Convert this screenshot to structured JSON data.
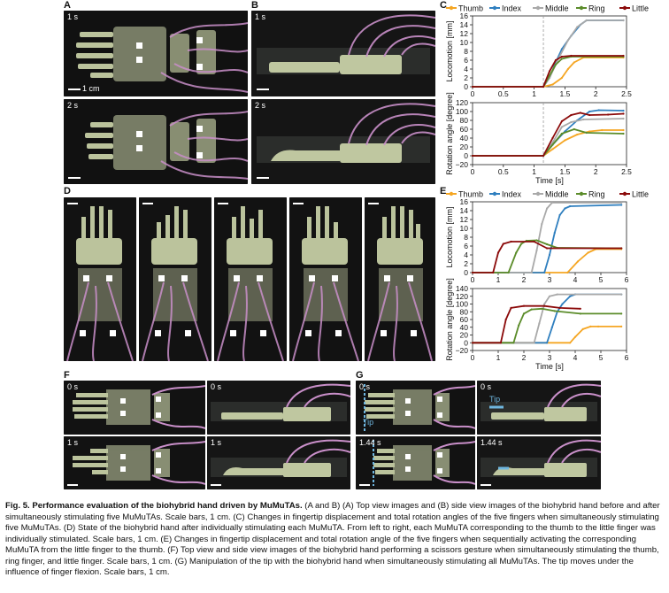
{
  "panel_letters": {
    "a": "A",
    "b": "B",
    "c": "C",
    "d": "D",
    "e": "E",
    "f": "F",
    "g": "G"
  },
  "time_labels": {
    "a_top": "1 s",
    "a_bot": "2 s",
    "b_top": "1 s",
    "b_bot": "2 s",
    "f_tl": "0 s",
    "f_tr": "0 s",
    "f_bl": "1 s",
    "f_br": "1 s",
    "g_tl": "0 s",
    "g_tr": "0 s",
    "g_bl": "1.44 s",
    "g_br": "1.44 s"
  },
  "scale_label": "1 cm",
  "tip_label": "Tip",
  "colors": {
    "thumb": "#F5A623",
    "index": "#2F7FBF",
    "middle": "#A9A9A9",
    "ring": "#5B8C2A",
    "little": "#8B0A0A",
    "photo_bg": "#111111",
    "tube": "#C98FC9",
    "tissue": "#D9E3B5"
  },
  "chart_data": [
    {
      "type": "line",
      "panel": "C",
      "legend_position": "top",
      "series_names": [
        "Thumb",
        "Index",
        "Middle",
        "Ring",
        "Little"
      ],
      "subplots": [
        {
          "ylabel": "Locomotion [mm]",
          "xlabel": "",
          "ylim": [
            0,
            16
          ],
          "yticks": [
            "0",
            "2",
            "4",
            "6",
            "8",
            "10",
            "12",
            "14",
            "16"
          ],
          "xlim": [
            0,
            2.5
          ],
          "xticks": [
            "0",
            "0.5",
            "1",
            "1.5",
            "2",
            "2.5"
          ],
          "vline": 1.15,
          "series": [
            {
              "name": "Thumb",
              "values": [
                [
                  0,
                  0
                ],
                [
                  1.15,
                  0
                ],
                [
                  1.3,
                  0.5
                ],
                [
                  1.45,
                  2
                ],
                [
                  1.55,
                  4
                ],
                [
                  1.65,
                  5.5
                ],
                [
                  1.8,
                  6.6
                ],
                [
                  2.45,
                  6.6
                ]
              ]
            },
            {
              "name": "Index",
              "values": [
                [
                  0,
                  0
                ],
                [
                  1.15,
                  0
                ],
                [
                  1.25,
                  2
                ],
                [
                  1.35,
                  5.5
                ],
                [
                  1.45,
                  8.5
                ],
                [
                  1.6,
                  11.5
                ],
                [
                  1.75,
                  14
                ],
                [
                  1.85,
                  15
                ],
                [
                  2.45,
                  15
                ]
              ]
            },
            {
              "name": "Middle",
              "values": [
                [
                  0,
                  0
                ],
                [
                  1.15,
                  0
                ],
                [
                  1.25,
                  2
                ],
                [
                  1.4,
                  6.5
                ],
                [
                  1.55,
                  10.5
                ],
                [
                  1.7,
                  13.5
                ],
                [
                  1.85,
                  15
                ],
                [
                  2.45,
                  15
                ]
              ]
            },
            {
              "name": "Ring",
              "values": [
                [
                  0,
                  0
                ],
                [
                  1.15,
                  0
                ],
                [
                  1.25,
                  2.5
                ],
                [
                  1.35,
                  5
                ],
                [
                  1.45,
                  6.3
                ],
                [
                  1.6,
                  6.8
                ],
                [
                  2.45,
                  6.8
                ]
              ]
            },
            {
              "name": "Little",
              "values": [
                [
                  0,
                  0
                ],
                [
                  1.15,
                  0
                ],
                [
                  1.25,
                  3.5
                ],
                [
                  1.35,
                  6
                ],
                [
                  1.45,
                  6.8
                ],
                [
                  1.6,
                  7
                ],
                [
                  2.45,
                  7
                ]
              ]
            }
          ]
        },
        {
          "ylabel": "Rotation angle [degree]",
          "xlabel": "Time [s]",
          "ylim": [
            -20,
            120
          ],
          "yticks": [
            "−20",
            "0",
            "20",
            "40",
            "60",
            "80",
            "100",
            "120"
          ],
          "xlim": [
            0,
            2.5
          ],
          "xticks": [
            "0",
            "0.5",
            "1",
            "1.5",
            "2",
            "2.5"
          ],
          "vline": 1.15,
          "series": [
            {
              "name": "Thumb",
              "values": [
                [
                  0,
                  0
                ],
                [
                  1.15,
                  0
                ],
                [
                  1.3,
                  15
                ],
                [
                  1.5,
                  35
                ],
                [
                  1.7,
                  48
                ],
                [
                  1.9,
                  55
                ],
                [
                  2.1,
                  58
                ],
                [
                  2.45,
                  58
                ]
              ]
            },
            {
              "name": "Index",
              "values": [
                [
                  0,
                  0
                ],
                [
                  1.15,
                  0
                ],
                [
                  1.3,
                  25
                ],
                [
                  1.5,
                  55
                ],
                [
                  1.7,
                  80
                ],
                [
                  1.9,
                  100
                ],
                [
                  2.05,
                  103
                ],
                [
                  2.45,
                  102
                ]
              ]
            },
            {
              "name": "Middle",
              "values": [
                [
                  0,
                  0
                ],
                [
                  1.15,
                  0
                ],
                [
                  1.3,
                  30
                ],
                [
                  1.45,
                  65
                ],
                [
                  1.6,
                  76
                ],
                [
                  1.8,
                  82
                ],
                [
                  2.45,
                  84
                ]
              ]
            },
            {
              "name": "Ring",
              "values": [
                [
                  0,
                  0
                ],
                [
                  1.15,
                  0
                ],
                [
                  1.3,
                  25
                ],
                [
                  1.45,
                  50
                ],
                [
                  1.65,
                  60
                ],
                [
                  1.85,
                  52
                ],
                [
                  2.45,
                  50
                ]
              ]
            },
            {
              "name": "Little",
              "values": [
                [
                  0,
                  0
                ],
                [
                  1.15,
                  0
                ],
                [
                  1.3,
                  40
                ],
                [
                  1.45,
                  78
                ],
                [
                  1.6,
                  92
                ],
                [
                  1.75,
                  97
                ],
                [
                  1.9,
                  92
                ],
                [
                  2.2,
                  93
                ],
                [
                  2.45,
                  95
                ]
              ]
            }
          ]
        }
      ]
    },
    {
      "type": "line",
      "panel": "E",
      "legend_position": "top",
      "series_names": [
        "Thumb",
        "Index",
        "Middle",
        "Ring",
        "Little"
      ],
      "subplots": [
        {
          "ylabel": "Locomotion [mm]",
          "xlabel": "",
          "ylim": [
            0,
            16
          ],
          "yticks": [
            "0",
            "2",
            "4",
            "6",
            "8",
            "10",
            "12",
            "14",
            "16"
          ],
          "xlim": [
            0,
            6
          ],
          "xticks": [
            "0",
            "1",
            "2",
            "3",
            "4",
            "5",
            "6"
          ],
          "series": [
            {
              "name": "Thumb",
              "values": [
                [
                  0,
                  0
                ],
                [
                  3.7,
                  0
                ],
                [
                  4.1,
                  2.5
                ],
                [
                  4.5,
                  4.5
                ],
                [
                  4.8,
                  5.3
                ],
                [
                  5.8,
                  5.3
                ]
              ]
            },
            {
              "name": "Index",
              "values": [
                [
                  0,
                  0
                ],
                [
                  2.8,
                  0
                ],
                [
                  3.0,
                  4
                ],
                [
                  3.2,
                  9
                ],
                [
                  3.4,
                  13
                ],
                [
                  3.6,
                  14.5
                ],
                [
                  3.8,
                  15
                ],
                [
                  5.8,
                  15.3
                ]
              ]
            },
            {
              "name": "Middle",
              "values": [
                [
                  0,
                  0
                ],
                [
                  2.3,
                  0
                ],
                [
                  2.5,
                  5
                ],
                [
                  2.7,
                  11
                ],
                [
                  2.9,
                  14.5
                ],
                [
                  3.1,
                  15.8
                ],
                [
                  5.8,
                  15.8
                ]
              ]
            },
            {
              "name": "Ring",
              "values": [
                [
                  0,
                  0
                ],
                [
                  1.4,
                  0
                ],
                [
                  1.7,
                  4.5
                ],
                [
                  1.9,
                  6.5
                ],
                [
                  2.1,
                  7.2
                ],
                [
                  2.5,
                  7.3
                ],
                [
                  2.9,
                  6.4
                ],
                [
                  3.3,
                  5.6
                ],
                [
                  5.8,
                  5.5
                ]
              ]
            },
            {
              "name": "Little",
              "values": [
                [
                  0,
                  0
                ],
                [
                  0.8,
                  0
                ],
                [
                  1.0,
                  4.5
                ],
                [
                  1.2,
                  6.5
                ],
                [
                  1.5,
                  7
                ],
                [
                  2.4,
                  7
                ],
                [
                  2.9,
                  5.5
                ],
                [
                  5.8,
                  5.5
                ]
              ]
            }
          ]
        },
        {
          "ylabel": "Rotation angle [degree]",
          "xlabel": "Time [s]",
          "ylim": [
            -20,
            140
          ],
          "yticks": [
            "−20",
            "0",
            "20",
            "40",
            "60",
            "80",
            "100",
            "120",
            "140"
          ],
          "xlim": [
            0,
            6
          ],
          "xticks": [
            "0",
            "1",
            "2",
            "3",
            "4",
            "5",
            "6"
          ],
          "series": [
            {
              "name": "Thumb",
              "values": [
                [
                  0,
                  0
                ],
                [
                  3.8,
                  0
                ],
                [
                  4.0,
                  15
                ],
                [
                  4.3,
                  35
                ],
                [
                  4.6,
                  42
                ],
                [
                  4.9,
                  42
                ],
                [
                  5.8,
                  42
                ]
              ]
            },
            {
              "name": "Index",
              "values": [
                [
                  0,
                  0
                ],
                [
                  2.9,
                  0
                ],
                [
                  3.1,
                  40
                ],
                [
                  3.3,
                  80
                ],
                [
                  3.5,
                  100
                ],
                [
                  3.8,
                  120
                ],
                [
                  4.0,
                  125
                ],
                [
                  5.8,
                  125
                ]
              ]
            },
            {
              "name": "Middle",
              "values": [
                [
                  0,
                  0
                ],
                [
                  2.4,
                  0
                ],
                [
                  2.6,
                  50
                ],
                [
                  2.8,
                  100
                ],
                [
                  3.0,
                  120
                ],
                [
                  3.3,
                  125
                ],
                [
                  5.8,
                  125
                ]
              ]
            },
            {
              "name": "Ring",
              "values": [
                [
                  0,
                  0
                ],
                [
                  1.6,
                  0
                ],
                [
                  1.8,
                  45
                ],
                [
                  2.0,
                  75
                ],
                [
                  2.3,
                  86
                ],
                [
                  2.7,
                  88
                ],
                [
                  3.2,
                  82
                ],
                [
                  4.2,
                  75
                ],
                [
                  5.8,
                  75
                ]
              ]
            },
            {
              "name": "Little",
              "values": [
                [
                  0,
                  0
                ],
                [
                  1.1,
                  0
                ],
                [
                  1.3,
                  60
                ],
                [
                  1.5,
                  90
                ],
                [
                  2.0,
                  95
                ],
                [
                  2.8,
                  95
                ],
                [
                  3.4,
                  90
                ],
                [
                  4.2,
                  88
                ]
              ]
            }
          ]
        }
      ]
    }
  ],
  "caption": {
    "heading": "Fig. 5. Performance evaluation of the biohybrid hand driven by MuMuTAs.",
    "body": " (A and B) (A) Top view images and (B) side view images of the biohybrid hand before and after simultaneously stimulating five MuMuTAs. Scale bars, 1 cm. (C) Changes in fingertip displacement and total rotation angles of the five fingers when simultaneously stimulating five MuMuTAs. (D) State of the biohybrid hand after individually stimulating each MuMuTA. From left to right, each MuMuTA corresponding to the thumb to the little finger was individually stimulated. Scale bars, 1 cm. (E) Changes in fingertip displacement and total rotation angle of the five fingers when sequentially activating the corresponding MuMuTA from the little finger to the thumb. (F) Top view and side view images of the biohybrid hand performing a scissors gesture when simultaneously stimulating the thumb, ring finger, and little finger. Scale bars, 1 cm. (G) Manipulation of the tip with the biohybrid hand when simultaneously stimulating all MuMuTAs. The tip moves under the influence of finger flexion. Scale bars, 1 cm."
  }
}
